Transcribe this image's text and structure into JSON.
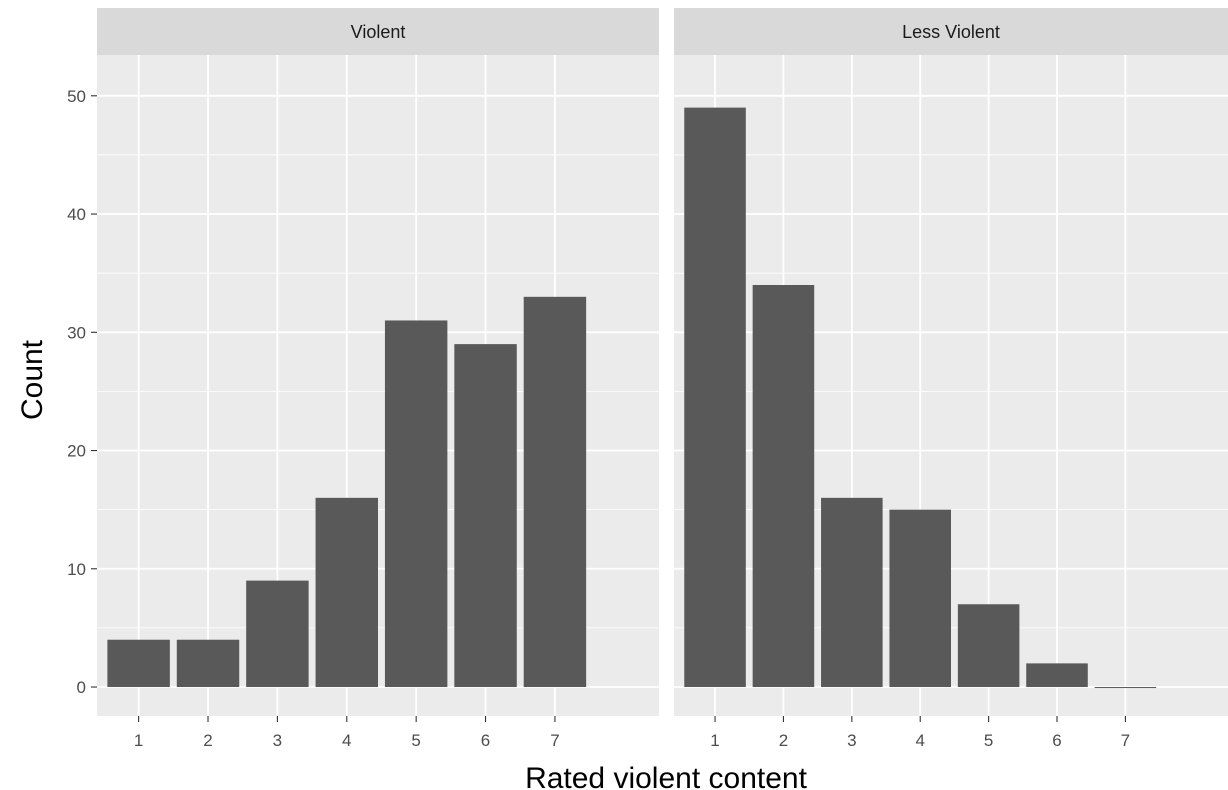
{
  "chart_data": {
    "type": "bar",
    "facets": [
      {
        "label": "Violent",
        "categories": [
          "1",
          "2",
          "3",
          "4",
          "5",
          "6",
          "7"
        ],
        "values": [
          4,
          4,
          9,
          16,
          31,
          29,
          33
        ]
      },
      {
        "label": "Less Violent",
        "categories": [
          "1",
          "2",
          "3",
          "4",
          "5",
          "6",
          "7"
        ],
        "values": [
          49,
          34,
          16,
          15,
          7,
          2,
          0
        ]
      }
    ],
    "xlabel": "Rated violent content",
    "ylabel": "Count",
    "yticks": [
      0,
      10,
      20,
      30,
      40,
      50
    ],
    "ylim": [
      -2.45,
      53.45
    ],
    "xlim": [
      0.4,
      8.5
    ],
    "grid": true,
    "colors": {
      "bar": "#595959",
      "panel": "#ebebeb",
      "strip": "#d9d9d9",
      "grid": "#ffffff"
    }
  }
}
